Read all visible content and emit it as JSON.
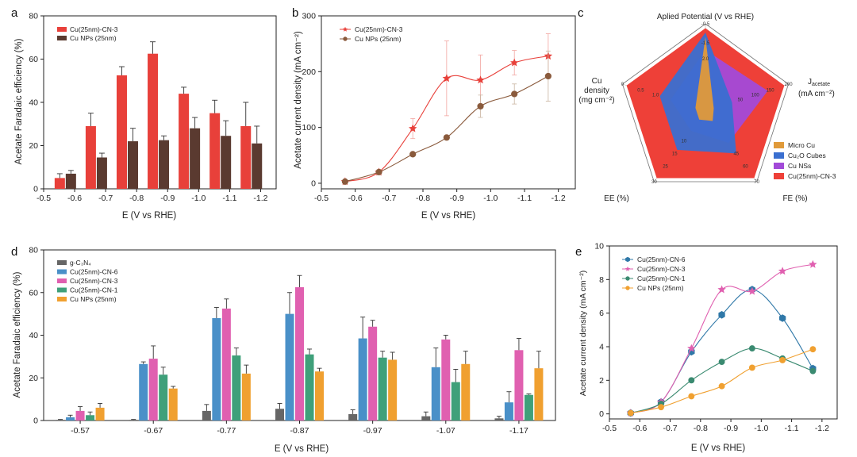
{
  "colors": {
    "red": "#e8403a",
    "brown": "#5a3a30",
    "brownMarker": "#8a5a3c",
    "gray": "#666666",
    "blue": "#4a90c8",
    "pink": "#e060b0",
    "green": "#3fa07a",
    "orange": "#f0a030",
    "e_blue": "#2f78a8",
    "e_pink": "#e060b0",
    "e_green": "#3a8a70",
    "e_orange": "#f0a030",
    "radar_orange": "#e09a3a",
    "radar_blue": "#3a6fd0",
    "radar_purple": "#a24ad8",
    "radar_red": "#ee4038"
  },
  "chart_data": [
    {
      "id": "a",
      "panel_label": "a",
      "type": "bar",
      "xlabel": "E (V vs RHE)",
      "ylabel": "Acetate Faradaic efficiency (%)",
      "xlim": [
        -0.5,
        -1.25
      ],
      "ylim": [
        0,
        80
      ],
      "x_ticks": [
        "-0.5",
        "-0.6",
        "-0.7",
        "-0.8",
        "-0.9",
        "-1.0",
        "-1.1",
        "-1.2"
      ],
      "y_ticks": [
        "0",
        "20",
        "40",
        "60",
        "80"
      ],
      "legend_position": "top-left",
      "series": [
        {
          "name": "Cu(25nm)-CN-3",
          "color_key": "red",
          "x": [
            -0.57,
            -0.67,
            -0.77,
            -0.87,
            -0.97,
            -1.07,
            -1.17
          ],
          "values": [
            5,
            29,
            52.5,
            62.5,
            44,
            35,
            29
          ],
          "errors": [
            2,
            6,
            4,
            5.5,
            3,
            6,
            11
          ]
        },
        {
          "name": "Cu NPs (25nm)",
          "color_key": "brown",
          "x": [
            -0.57,
            -0.67,
            -0.77,
            -0.87,
            -0.97,
            -1.07,
            -1.17
          ],
          "values": [
            7,
            14.5,
            22,
            22.5,
            28,
            24.5,
            21
          ],
          "errors": [
            1.5,
            2,
            6,
            2,
            5,
            7,
            8
          ]
        }
      ]
    },
    {
      "id": "b",
      "panel_label": "b",
      "type": "line",
      "xlabel": "E (V vs RHE)",
      "ylabel": "Acetate current density (mA cm⁻²)",
      "xlim": [
        -0.5,
        -1.25
      ],
      "ylim": [
        -10,
        300
      ],
      "x_ticks": [
        "-0.5",
        "-0.6",
        "-0.7",
        "-0.8",
        "-0.9",
        "-1.0",
        "-1.1",
        "-1.2"
      ],
      "y_ticks": [
        "0",
        "100",
        "200",
        "300"
      ],
      "legend_position": "top-left",
      "series": [
        {
          "name": "Cu(25nm)-CN-3",
          "color_key": "red",
          "marker": "star",
          "x": [
            -0.57,
            -0.67,
            -0.77,
            -0.87,
            -0.97,
            -1.07,
            -1.17
          ],
          "values": [
            3,
            20,
            98,
            188,
            185,
            216,
            228
          ],
          "errors": [
            0,
            4,
            18,
            67,
            45,
            22,
            40
          ]
        },
        {
          "name": "Cu NPs (25nm)",
          "color_key": "brownMarker",
          "marker": "circle",
          "x": [
            -0.57,
            -0.67,
            -0.77,
            -0.87,
            -0.97,
            -1.07,
            -1.17
          ],
          "values": [
            3,
            20,
            52,
            82,
            138,
            160,
            192
          ],
          "errors": [
            0,
            0,
            0,
            0,
            20,
            18,
            45
          ]
        }
      ]
    },
    {
      "id": "c",
      "panel_label": "c",
      "type": "radar",
      "axes": [
        {
          "label": "Aplied Potential (V vs RHE)",
          "max_label": "-0.5",
          "inner_labels": [
            "-1.5",
            "2.0"
          ]
        },
        {
          "label": "J_acetate (mA cm⁻²)",
          "label_main": "J",
          "label_sub": "acetate",
          "label_unit": "(mA cm⁻²)",
          "max_label": "200",
          "inner_labels": [
            "150",
            "100",
            "50"
          ]
        },
        {
          "label": "FE (%)",
          "max_label": "70",
          "inner_labels": [
            "60",
            "45"
          ]
        },
        {
          "label": "EE (%)",
          "max_label": "30",
          "inner_labels": [
            "25",
            "15",
            "10"
          ]
        },
        {
          "label": "Cu density (mg cm⁻²)",
          "label_lines": [
            "Cu",
            "density",
            "(mg cm⁻²)"
          ],
          "max_label": "0",
          "inner_labels": [
            "0.5",
            "1.0"
          ]
        }
      ],
      "series": [
        {
          "name": "Micro Cu",
          "color_key": "radar_orange",
          "values": [
            0.85,
            0.1,
            0.14,
            0.12,
            0.12
          ]
        },
        {
          "name": "Cu₂O Cubes",
          "color_key": "radar_blue",
          "values": [
            0.9,
            0.32,
            0.6,
            0.55,
            0.55
          ]
        },
        {
          "name": "Cu NSs",
          "color_key": "radar_purple",
          "values": [
            0.7,
            0.75,
            0.45,
            0.28,
            0.42
          ]
        },
        {
          "name": "Cu(25nm)-CN-3",
          "color_key": "radar_red",
          "values": [
            0.95,
            0.95,
            0.95,
            0.95,
            0.95
          ]
        }
      ]
    },
    {
      "id": "d",
      "panel_label": "d",
      "type": "bar",
      "xlabel": "E (V vs RHE)",
      "ylabel": "Acetate Faradaic efficiency (%)",
      "categories": [
        "-0.57",
        "-0.67",
        "-0.77",
        "-0.87",
        "-0.97",
        "-1.07",
        "-1.17"
      ],
      "ylim": [
        0,
        80
      ],
      "y_ticks": [
        "0",
        "20",
        "40",
        "60",
        "80"
      ],
      "legend_position": "top-left",
      "series": [
        {
          "name": "g-C₃N₄",
          "color_key": "gray",
          "values": [
            0.3,
            0.3,
            4.5,
            5.5,
            3,
            2,
            1
          ],
          "errors": [
            0.2,
            0.2,
            3,
            2.5,
            2,
            2,
            1
          ]
        },
        {
          "name": "Cu(25nm)-CN-6",
          "color_key": "blue",
          "values": [
            1.5,
            26.5,
            48,
            50,
            38.5,
            25,
            8.5
          ],
          "errors": [
            1,
            1,
            5,
            10,
            10,
            9,
            5
          ]
        },
        {
          "name": "Cu(25nm)-CN-3",
          "color_key": "pink",
          "values": [
            4.5,
            29,
            52.5,
            62.5,
            44,
            38,
            33
          ],
          "errors": [
            2,
            6,
            4.5,
            5.5,
            3,
            2,
            5.5
          ]
        },
        {
          "name": "Cu(25nm)-CN-1",
          "color_key": "green",
          "values": [
            2.5,
            21.5,
            30.5,
            31,
            29.5,
            18,
            12
          ],
          "errors": [
            1.5,
            3.5,
            3.5,
            2.5,
            3,
            6,
            0.5
          ]
        },
        {
          "name": "Cu NPs (25nm)",
          "color_key": "orange",
          "values": [
            6,
            15,
            22,
            23,
            28.5,
            26.5,
            24.5
          ],
          "errors": [
            2,
            1,
            4,
            1.5,
            3.5,
            6,
            8
          ]
        }
      ]
    },
    {
      "id": "e",
      "panel_label": "e",
      "type": "line",
      "xlabel": "E (V vs RHE)",
      "ylabel": "Acetate current density (mA cm⁻²)",
      "xlim": [
        -0.5,
        -1.25
      ],
      "ylim": [
        -0.3,
        10
      ],
      "x_ticks": [
        "-0.5",
        "-0.6",
        "-0.7",
        "-0.8",
        "-0.9",
        "-1.0",
        "-1.1",
        "-1.2"
      ],
      "y_ticks": [
        "0",
        "2",
        "4",
        "6",
        "8",
        "10"
      ],
      "legend_position": "top-left",
      "series": [
        {
          "name": "Cu(25nm)-CN-6",
          "color_key": "e_blue",
          "marker": "hexagon",
          "x": [
            -0.57,
            -0.67,
            -0.77,
            -0.87,
            -0.97,
            -1.07,
            -1.17
          ],
          "values": [
            0.05,
            0.7,
            3.7,
            5.9,
            7.4,
            5.7,
            2.7
          ]
        },
        {
          "name": "Cu(25nm)-CN-3",
          "color_key": "e_pink",
          "marker": "star",
          "x": [
            -0.57,
            -0.67,
            -0.77,
            -0.87,
            -0.97,
            -1.07,
            -1.17
          ],
          "values": [
            0.05,
            0.7,
            3.9,
            7.4,
            7.3,
            8.5,
            8.9
          ]
        },
        {
          "name": "Cu(25nm)-CN-1",
          "color_key": "e_green",
          "marker": "circle",
          "x": [
            -0.57,
            -0.67,
            -0.77,
            -0.87,
            -0.97,
            -1.07,
            -1.17
          ],
          "values": [
            0.05,
            0.6,
            2.0,
            3.1,
            3.9,
            3.3,
            2.55
          ]
        },
        {
          "name": "Cu NPs (25nm)",
          "color_key": "e_orange",
          "marker": "circle",
          "x": [
            -0.57,
            -0.67,
            -0.77,
            -0.87,
            -0.97,
            -1.07,
            -1.17
          ],
          "values": [
            0.05,
            0.4,
            1.05,
            1.65,
            2.75,
            3.2,
            3.85
          ]
        }
      ]
    }
  ]
}
